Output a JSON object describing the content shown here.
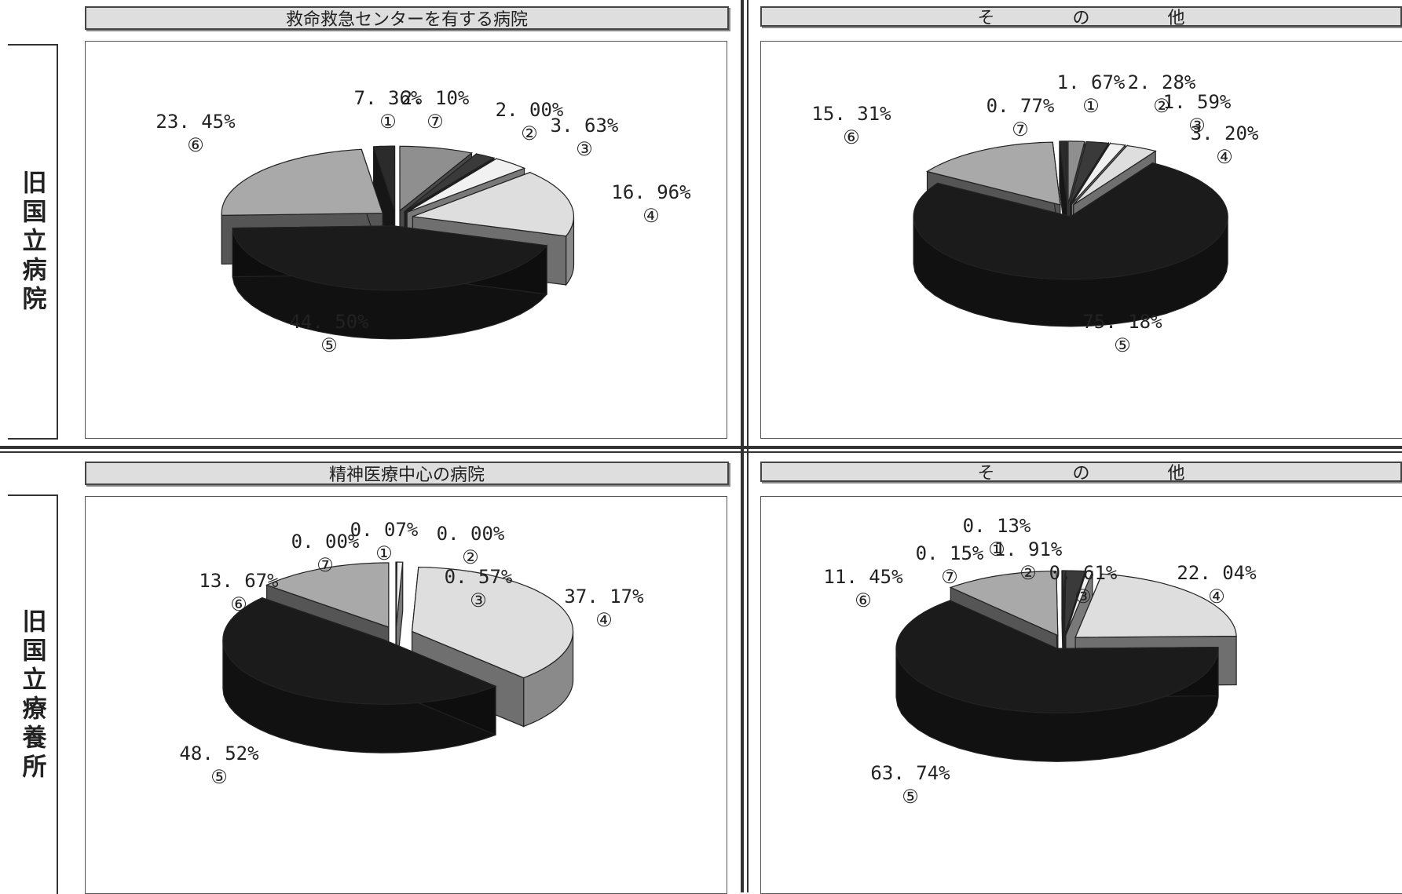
{
  "row_labels": [
    "旧国立病院",
    "旧国立療養所"
  ],
  "colors": [
    "#8f8f8f",
    "#3a3a3a",
    "#f1f1f1",
    "#dedede",
    "#1b1b1b",
    "#a9a9a9",
    "#2b2b2b"
  ],
  "chart_data": [
    {
      "type": "pie",
      "title": "救命救急センターを有する病院",
      "categories": [
        "①",
        "②",
        "③",
        "④",
        "⑤",
        "⑥",
        "⑦"
      ],
      "values": [
        7.36,
        2.0,
        3.63,
        16.96,
        44.5,
        23.45,
        2.1
      ],
      "value_labels": [
        "7. 36%",
        "2. 00%",
        "3. 63%",
        "16. 96%",
        "44. 50%",
        "23. 45%",
        "2. 10%"
      ]
    },
    {
      "type": "pie",
      "title": "そ の 他",
      "categories": [
        "①",
        "②",
        "③",
        "④",
        "⑤",
        "⑥",
        "⑦"
      ],
      "values": [
        1.67,
        2.28,
        1.59,
        3.2,
        75.18,
        15.31,
        0.77
      ],
      "value_labels": [
        "1. 67%",
        "2. 28%",
        "1. 59%",
        "3. 20%",
        "75. 18%",
        "15. 31%",
        "0. 77%"
      ]
    },
    {
      "type": "pie",
      "title": "精神医療中心の病院",
      "categories": [
        "①",
        "②",
        "③",
        "④",
        "⑤",
        "⑥",
        "⑦"
      ],
      "values": [
        0.07,
        0.0,
        0.57,
        37.17,
        48.52,
        13.67,
        0.0
      ],
      "value_labels": [
        "0. 07%",
        "0. 00%",
        "0. 57%",
        "37. 17%",
        "48. 52%",
        "13. 67%",
        "0. 00%"
      ]
    },
    {
      "type": "pie",
      "title": "そ の 他",
      "categories": [
        "①",
        "②",
        "③",
        "④",
        "⑤",
        "⑥",
        "⑦"
      ],
      "values": [
        0.13,
        1.91,
        0.61,
        22.04,
        63.74,
        11.45,
        0.15
      ],
      "value_labels": [
        "0. 13%",
        "1. 91%",
        "0. 61%",
        "22. 04%",
        "63. 74%",
        "11. 45%",
        "0. 15%"
      ]
    }
  ]
}
